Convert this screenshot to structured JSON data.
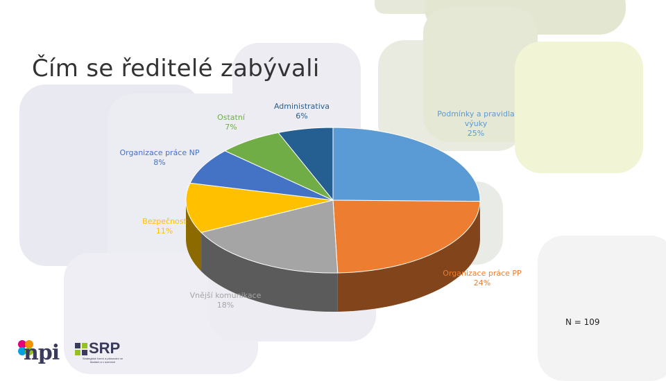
{
  "slide": {
    "title": "Čím se ředitelé zabývali"
  },
  "note": "N = 109",
  "colors": {
    "bg_gray": "#e9e9f1",
    "bg_olive": "#e6e9d9",
    "bg_yellow": "#f2f4d6",
    "side_darken": 0.55
  },
  "chart_data": {
    "type": "pie",
    "style": "3d",
    "title": "",
    "legend": "none",
    "slices": [
      {
        "label": "Podmínky a pravidla výuky",
        "value": 25,
        "display": "25%",
        "color": "#5b9bd5"
      },
      {
        "label": "Organizace práce PP",
        "value": 24,
        "display": "24%",
        "color": "#ed7d31"
      },
      {
        "label": "Vnější komunikace",
        "value": 18,
        "display": "18%",
        "color": "#a5a5a5"
      },
      {
        "label": "Bezpečnost",
        "value": 11,
        "display": "11%",
        "color": "#ffc000"
      },
      {
        "label": "Organizace práce NP",
        "value": 8,
        "display": "8%",
        "color": "#4472c4"
      },
      {
        "label": "Ostatní",
        "value": 7,
        "display": "7%",
        "color": "#70ad47"
      },
      {
        "label": "Administrativa",
        "value": 6,
        "display": "6%",
        "color": "#255e91"
      }
    ]
  },
  "logos": {
    "npi": {
      "text": "npi",
      "icon": "npi-petals-icon"
    },
    "srp": {
      "text": "SRP",
      "subtitle": "Strategické řízení a plánování ve školách a v územích",
      "icon": "srp-squares-icon"
    }
  }
}
